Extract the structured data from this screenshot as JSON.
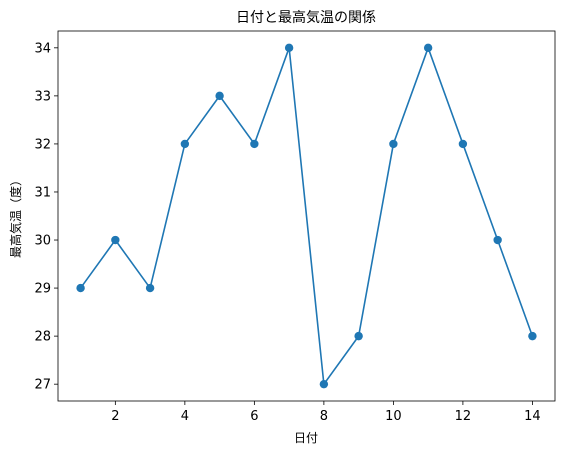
{
  "chart_data": {
    "type": "line",
    "title": "日付と最高気温の関係",
    "xlabel": "日付",
    "ylabel": "最高気温（度）",
    "x": [
      1,
      2,
      3,
      4,
      5,
      6,
      7,
      8,
      9,
      10,
      11,
      12,
      13,
      14
    ],
    "series": [
      {
        "values": [
          29,
          30,
          29,
          32,
          33,
          32,
          34,
          27,
          28,
          32,
          34,
          32,
          30,
          28
        ]
      }
    ],
    "xlim": [
      0.35,
      14.65
    ],
    "ylim": [
      26.65,
      34.35
    ],
    "xticks": [
      2,
      4,
      6,
      8,
      10,
      12,
      14
    ],
    "yticks": [
      27,
      28,
      29,
      30,
      31,
      32,
      33,
      34
    ],
    "grid": false,
    "marker": "circle",
    "color": "#1f77b4"
  }
}
